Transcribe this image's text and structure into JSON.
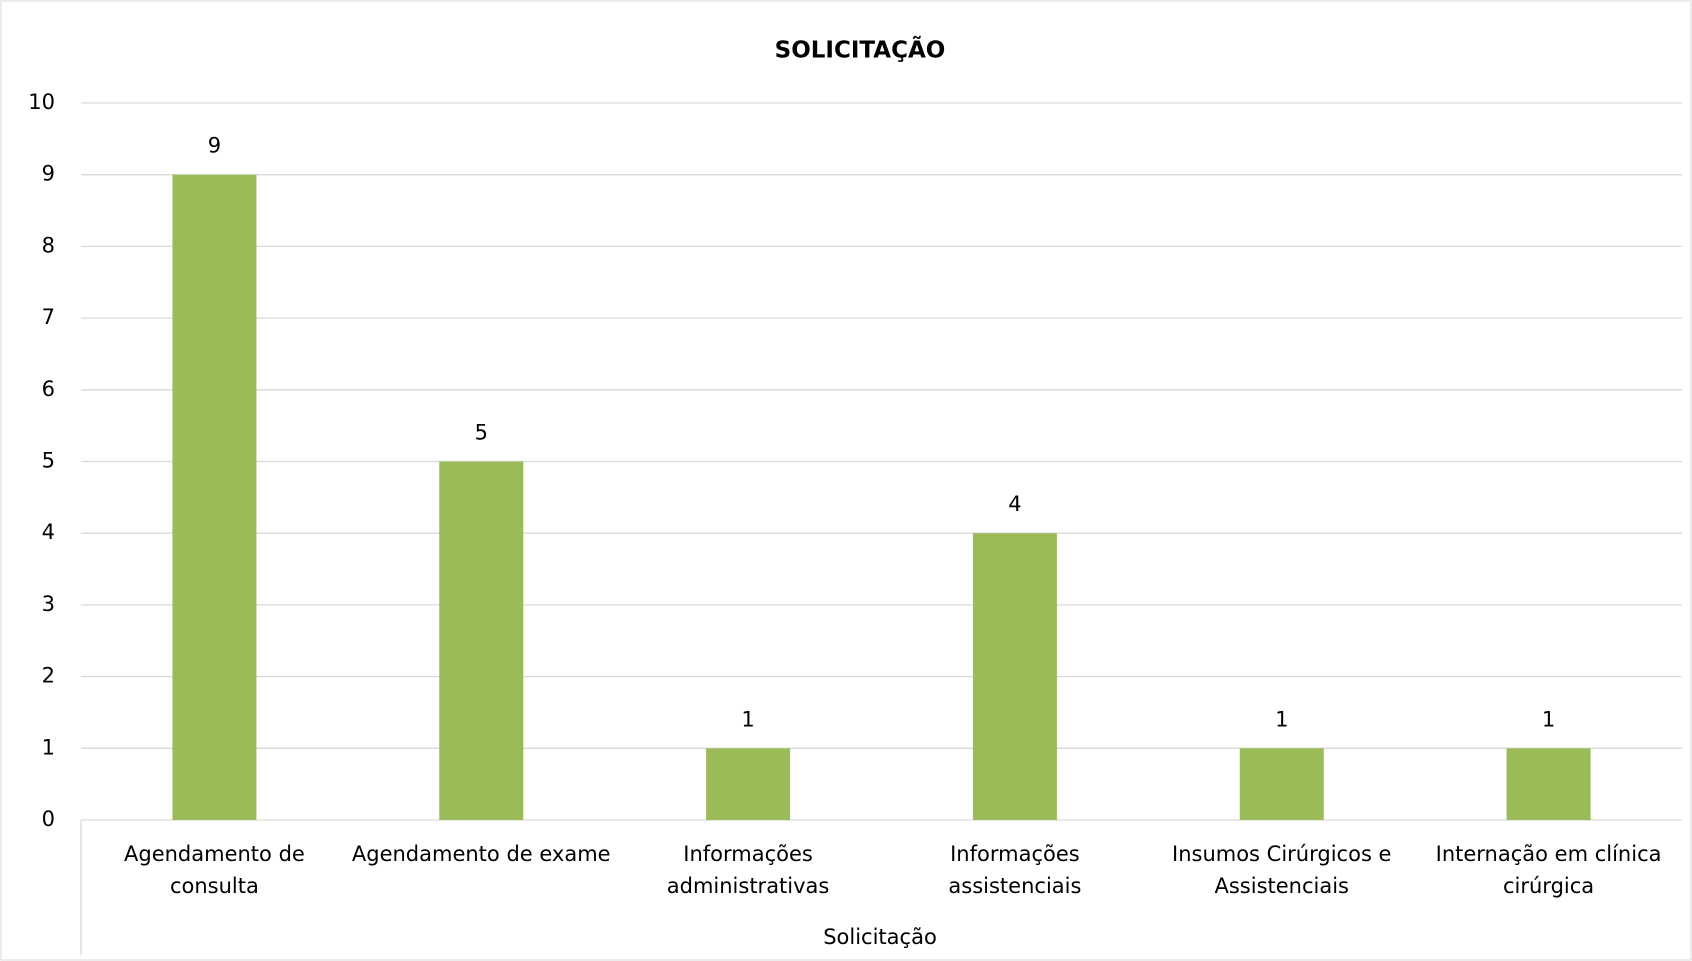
{
  "chart_data": {
    "type": "bar",
    "title": "SOLICITAÇÃO",
    "categories": [
      "Agendamento de consulta",
      "Agendamento de exame",
      "Informações administrativas",
      "Informações assistenciais",
      "Insumos Cirúrgicos e Assistenciais",
      "Internação em clínica cirúrgica"
    ],
    "values": [
      9,
      5,
      1,
      4,
      1,
      1
    ],
    "color": "#9bbb59",
    "x_label": "Solicitação",
    "ylim": [
      0,
      10
    ],
    "yticks": [
      0,
      1,
      2,
      3,
      4,
      5,
      6,
      7,
      8,
      9,
      10
    ],
    "grid": true
  }
}
